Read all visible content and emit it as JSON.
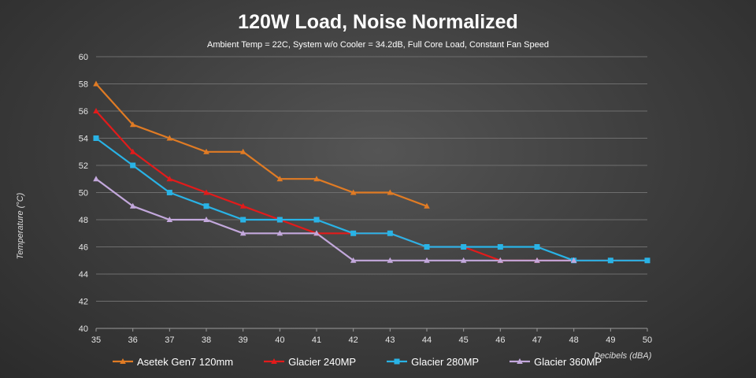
{
  "chart_data": {
    "type": "line",
    "title": "120W Load, Noise Normalized",
    "subtitle": "Ambient Temp = 22C, System w/o Cooler = 34.2dB, Full Core Load, Constant Fan Speed",
    "xlabel": "Decibels (dBA)",
    "ylabel": "Temperature (°C)",
    "xlim": [
      35,
      50
    ],
    "ylim": [
      40,
      60
    ],
    "x_ticks": [
      35,
      36,
      37,
      38,
      39,
      40,
      41,
      42,
      43,
      44,
      45,
      46,
      47,
      48,
      49,
      50
    ],
    "y_ticks": [
      40,
      42,
      44,
      46,
      48,
      50,
      52,
      54,
      56,
      58,
      60
    ],
    "grid": true,
    "legend_position": "bottom",
    "series": [
      {
        "name": "Asetek Gen7 120mm",
        "color": "#e07b24",
        "marker": "triangle",
        "x": [
          35,
          36,
          37,
          38,
          39,
          40,
          41,
          42,
          43,
          44
        ],
        "y": [
          58,
          55,
          54,
          53,
          53,
          51,
          51,
          50,
          50,
          49
        ]
      },
      {
        "name": "Glacier 240MP",
        "color": "#e21b1b",
        "marker": "triangle",
        "x": [
          35,
          36,
          37,
          38,
          39,
          40,
          41,
          42,
          43,
          44,
          45,
          46,
          47,
          48,
          49,
          50
        ],
        "y": [
          56,
          53,
          51,
          50,
          49,
          48,
          47,
          47,
          47,
          46,
          46,
          45,
          45,
          45,
          45,
          45
        ]
      },
      {
        "name": "Glacier 280MP",
        "color": "#29b3e6",
        "marker": "square",
        "x": [
          35,
          36,
          37,
          38,
          39,
          40,
          41,
          42,
          43,
          44,
          45,
          46,
          47,
          48,
          49,
          50
        ],
        "y": [
          54,
          52,
          50,
          49,
          48,
          48,
          48,
          47,
          47,
          46,
          46,
          46,
          46,
          45,
          45,
          45
        ]
      },
      {
        "name": "Glacier 360MP",
        "color": "#c3a8dc",
        "marker": "triangle",
        "x": [
          35,
          36,
          37,
          38,
          39,
          40,
          41,
          42,
          43,
          44,
          45,
          46,
          47,
          48
        ],
        "y": [
          51,
          49,
          48,
          48,
          47,
          47,
          47,
          45,
          45,
          45,
          45,
          45,
          45,
          45
        ]
      }
    ]
  }
}
